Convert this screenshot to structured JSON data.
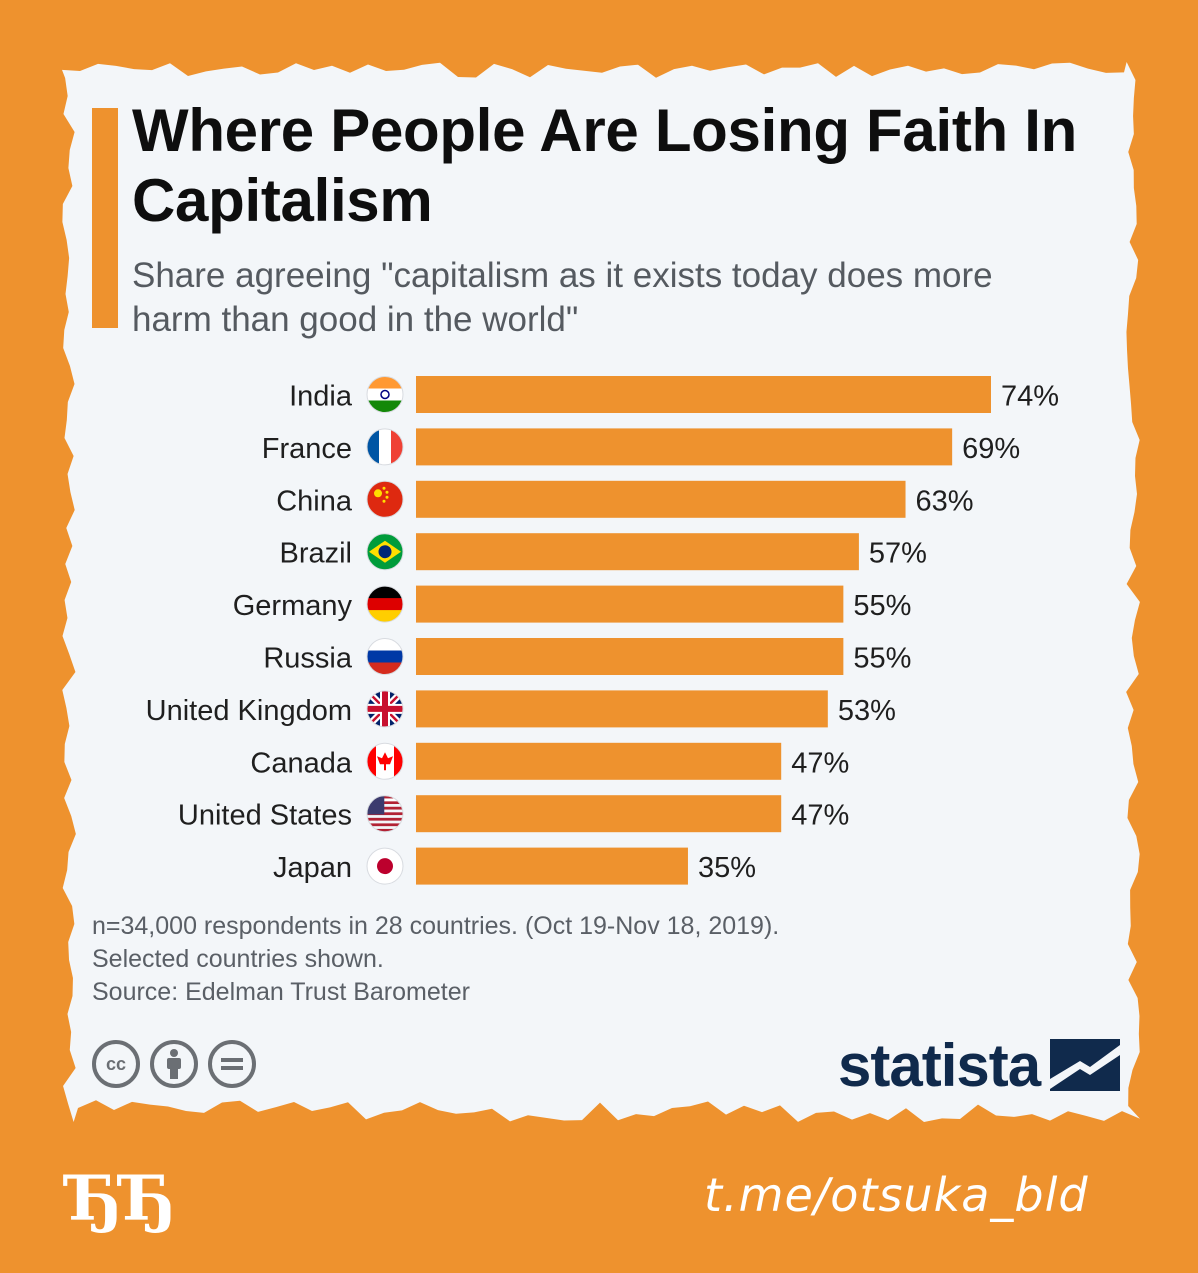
{
  "colors": {
    "frame": "#ee922e",
    "card": "#f3f6f9",
    "bar": "#ee922e",
    "title": "#0e0e0e",
    "subtitle": "#555a60",
    "brand": "#102a4c"
  },
  "header": {
    "title": "Where People Are Losing Faith In Capitalism",
    "subtitle": "Share agreeing \"capitalism as it exists today does more harm than good in the world\""
  },
  "chart_data": {
    "type": "bar",
    "orientation": "horizontal",
    "categories": [
      "India",
      "France",
      "China",
      "Brazil",
      "Germany",
      "Russia",
      "United Kingdom",
      "Canada",
      "United States",
      "Japan"
    ],
    "values": [
      74,
      69,
      63,
      57,
      55,
      55,
      53,
      47,
      47,
      35
    ],
    "data_labels": [
      "74%",
      "69%",
      "63%",
      "57%",
      "55%",
      "55%",
      "53%",
      "47%",
      "47%",
      "35%"
    ],
    "flags": [
      "india-flag-icon",
      "france-flag-icon",
      "china-flag-icon",
      "brazil-flag-icon",
      "germany-flag-icon",
      "russia-flag-icon",
      "united-kingdom-flag-icon",
      "canada-flag-icon",
      "united-states-flag-icon",
      "japan-flag-icon"
    ],
    "xlim": [
      0,
      74
    ],
    "grid": false,
    "legend": "none"
  },
  "notes": {
    "line1": "n=34,000 respondents in 28 countries. (Oct 19-Nov 18, 2019).",
    "line2": "Selected countries shown.",
    "line3": "Source: Edelman Trust Barometer"
  },
  "license": {
    "cc_label": "cc",
    "icons": [
      "creative-commons-icon",
      "attribution-icon",
      "no-derivatives-icon"
    ]
  },
  "brand": {
    "name": "statista"
  },
  "overlay": {
    "logo": "ЂЂ",
    "channel": "t.me/otsuka_bld"
  }
}
